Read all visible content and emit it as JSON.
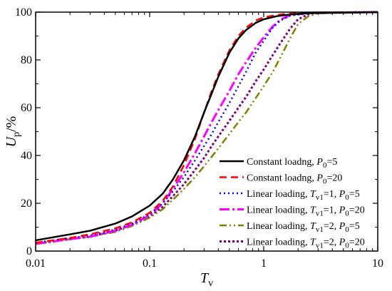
{
  "chart_data": {
    "type": "line",
    "xscale": "log",
    "xlim": [
      0.01,
      10
    ],
    "ylim": [
      0,
      100
    ],
    "xticks": [
      0.01,
      0.1,
      1,
      10
    ],
    "xtick_labels": [
      "0.01",
      "0.1",
      "1",
      "10"
    ],
    "yticks": [
      0,
      20,
      40,
      60,
      80,
      100
    ],
    "ytick_labels": [
      "0",
      "20",
      "40",
      "60",
      "80",
      "100"
    ],
    "xlabel": {
      "main": "T",
      "sub": "v"
    },
    "ylabel": {
      "main": "U",
      "sub": "p",
      "suffix": "/%"
    },
    "grid": false,
    "legend_position": "bottom-right",
    "series": [
      {
        "legend": {
          "prefix": "Constant loadng, ",
          "p_sub": "0",
          "value": "=5"
        },
        "color": "#000000",
        "dash": "solid",
        "width": 2.5,
        "points": [
          [
            0.01,
            4.5
          ],
          [
            0.02,
            7
          ],
          [
            0.03,
            8.5
          ],
          [
            0.05,
            11.5
          ],
          [
            0.07,
            14.5
          ],
          [
            0.1,
            19
          ],
          [
            0.13,
            24
          ],
          [
            0.16,
            30
          ],
          [
            0.2,
            38
          ],
          [
            0.25,
            48
          ],
          [
            0.3,
            58
          ],
          [
            0.35,
            66
          ],
          [
            0.4,
            73
          ],
          [
            0.5,
            83
          ],
          [
            0.6,
            89
          ],
          [
            0.7,
            92.5
          ],
          [
            0.85,
            95.5
          ],
          [
            1,
            97
          ],
          [
            1.3,
            98.3
          ],
          [
            1.7,
            99
          ],
          [
            2.5,
            99.6
          ],
          [
            10,
            100
          ]
        ]
      },
      {
        "legend": {
          "prefix": "Constant loadng, ",
          "p_sub": "0",
          "value": "=20"
        },
        "color": "#ff0000",
        "dash": "10,6",
        "width": 2.5,
        "points": [
          [
            0.01,
            3.5
          ],
          [
            0.02,
            5.5
          ],
          [
            0.03,
            7
          ],
          [
            0.05,
            9.5
          ],
          [
            0.07,
            12
          ],
          [
            0.1,
            16
          ],
          [
            0.13,
            21
          ],
          [
            0.16,
            27
          ],
          [
            0.2,
            36
          ],
          [
            0.25,
            47
          ],
          [
            0.3,
            58
          ],
          [
            0.35,
            67
          ],
          [
            0.4,
            74
          ],
          [
            0.5,
            84
          ],
          [
            0.6,
            90
          ],
          [
            0.7,
            93.5
          ],
          [
            0.85,
            96.5
          ],
          [
            1,
            97.8
          ],
          [
            1.3,
            98.8
          ],
          [
            1.7,
            99.4
          ],
          [
            2.5,
            99.8
          ],
          [
            10,
            100
          ]
        ]
      },
      {
        "legend": {
          "prefix": "Linear loading, ",
          "t_sub": "v1",
          "t_value": "=1, ",
          "p_sub": "0",
          "value": "=5"
        },
        "color": "#0000ff",
        "dash": "2,4",
        "width": 2.5,
        "points": [
          [
            0.01,
            3.5
          ],
          [
            0.02,
            5.5
          ],
          [
            0.03,
            6.5
          ],
          [
            0.05,
            9
          ],
          [
            0.07,
            11.5
          ],
          [
            0.1,
            15.5
          ],
          [
            0.13,
            20
          ],
          [
            0.16,
            25
          ],
          [
            0.2,
            31
          ],
          [
            0.25,
            38
          ],
          [
            0.3,
            44
          ],
          [
            0.35,
            49
          ],
          [
            0.4,
            54
          ],
          [
            0.5,
            62
          ],
          [
            0.6,
            69
          ],
          [
            0.7,
            75
          ],
          [
            0.85,
            83
          ],
          [
            1,
            88
          ],
          [
            1.2,
            93.5
          ],
          [
            1.4,
            96.5
          ],
          [
            1.7,
            98.5
          ],
          [
            2.5,
            99.5
          ],
          [
            10,
            100
          ]
        ]
      },
      {
        "legend": {
          "prefix": "Linear loading, ",
          "t_sub": "v1",
          "t_value": "=1, ",
          "p_sub": "0",
          "value": "=20"
        },
        "color": "#ff00ff",
        "dash": "14,4,3,4",
        "width": 3,
        "points": [
          [
            0.01,
            3
          ],
          [
            0.02,
            5
          ],
          [
            0.03,
            6
          ],
          [
            0.05,
            8.5
          ],
          [
            0.07,
            11
          ],
          [
            0.1,
            15
          ],
          [
            0.13,
            20
          ],
          [
            0.16,
            26
          ],
          [
            0.2,
            33
          ],
          [
            0.25,
            41
          ],
          [
            0.3,
            48
          ],
          [
            0.35,
            54
          ],
          [
            0.4,
            59
          ],
          [
            0.5,
            67
          ],
          [
            0.6,
            74
          ],
          [
            0.7,
            79
          ],
          [
            0.85,
            85
          ],
          [
            1,
            89.5
          ],
          [
            1.2,
            94
          ],
          [
            1.4,
            96.8
          ],
          [
            1.7,
            98.7
          ],
          [
            2.5,
            99.7
          ],
          [
            10,
            100
          ]
        ]
      },
      {
        "legend": {
          "prefix": "Linear loading, ",
          "t_sub": "v1",
          "t_value": "=2, ",
          "p_sub": "0",
          "value": "=5"
        },
        "color": "#808000",
        "dash": "10,4,2,4,2,4",
        "width": 2.5,
        "points": [
          [
            0.01,
            3
          ],
          [
            0.02,
            5
          ],
          [
            0.03,
            6
          ],
          [
            0.05,
            8
          ],
          [
            0.07,
            10.5
          ],
          [
            0.1,
            14
          ],
          [
            0.13,
            17.5
          ],
          [
            0.16,
            21.5
          ],
          [
            0.2,
            26
          ],
          [
            0.25,
            31
          ],
          [
            0.3,
            35.5
          ],
          [
            0.35,
            39.5
          ],
          [
            0.4,
            43
          ],
          [
            0.5,
            49
          ],
          [
            0.6,
            54
          ],
          [
            0.7,
            58
          ],
          [
            0.85,
            64
          ],
          [
            1,
            69
          ],
          [
            1.2,
            75
          ],
          [
            1.4,
            81
          ],
          [
            1.7,
            89
          ],
          [
            2,
            95
          ],
          [
            2.5,
            98.5
          ],
          [
            3,
            99.5
          ],
          [
            10,
            100
          ]
        ]
      },
      {
        "legend": {
          "prefix": "Linear loading, ",
          "t_sub": "v1",
          "t_value": "=2, ",
          "p_sub": "0",
          "value": "=20"
        },
        "color": "#800080",
        "dash": "3,3",
        "width": 3,
        "points": [
          [
            0.01,
            3
          ],
          [
            0.02,
            5
          ],
          [
            0.03,
            6
          ],
          [
            0.05,
            8.5
          ],
          [
            0.07,
            11
          ],
          [
            0.1,
            14.5
          ],
          [
            0.13,
            18.5
          ],
          [
            0.16,
            23
          ],
          [
            0.2,
            28
          ],
          [
            0.25,
            34
          ],
          [
            0.3,
            39
          ],
          [
            0.35,
            44
          ],
          [
            0.4,
            48
          ],
          [
            0.5,
            54.5
          ],
          [
            0.6,
            60
          ],
          [
            0.7,
            64.5
          ],
          [
            0.85,
            71
          ],
          [
            1,
            76
          ],
          [
            1.2,
            82
          ],
          [
            1.4,
            87
          ],
          [
            1.7,
            93
          ],
          [
            2,
            97
          ],
          [
            2.5,
            99.2
          ],
          [
            3,
            99.8
          ],
          [
            10,
            100
          ]
        ]
      }
    ]
  }
}
